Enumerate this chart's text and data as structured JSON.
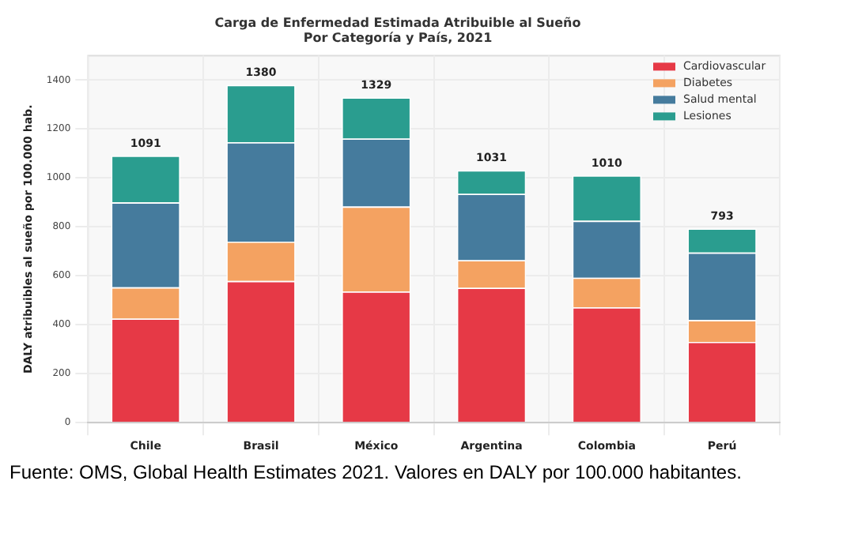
{
  "chart_data": {
    "type": "bar",
    "stacked": true,
    "title": "Carga de Enfermedad Estimada Atribuible al Sueño\nPor Categoría y País, 2021",
    "ylabel": "DALY atribuibles al sueño por 100.000 hab.",
    "categories": [
      "Chile",
      "Brasil",
      "México",
      "Argentina",
      "Colombia",
      "Perú"
    ],
    "series": [
      {
        "name": "Cardiovascular",
        "color": "#e63946",
        "values": [
          425,
          579,
          536,
          551,
          471,
          330
        ]
      },
      {
        "name": "Diabetes",
        "color": "#f4a261",
        "values": [
          128,
          161,
          347,
          113,
          121,
          89
        ]
      },
      {
        "name": "Salud mental",
        "color": "#457b9d",
        "values": [
          347,
          406,
          278,
          271,
          233,
          276
        ]
      },
      {
        "name": "Lesiones",
        "color": "#2a9d8f",
        "values": [
          191,
          234,
          168,
          96,
          185,
          98
        ]
      }
    ],
    "totals": [
      "1091",
      "1380",
      "1329",
      "1031",
      "1010",
      "793"
    ],
    "ylim": [
      0,
      1500
    ],
    "yticks": [
      0,
      200,
      400,
      600,
      800,
      1000,
      1200,
      1400
    ],
    "grid": true,
    "legend": "top right",
    "annotations": [
      "Fuente: OMS, Global Health Estimates 2021. Valores en DALY por 100.000 habitantes."
    ]
  }
}
